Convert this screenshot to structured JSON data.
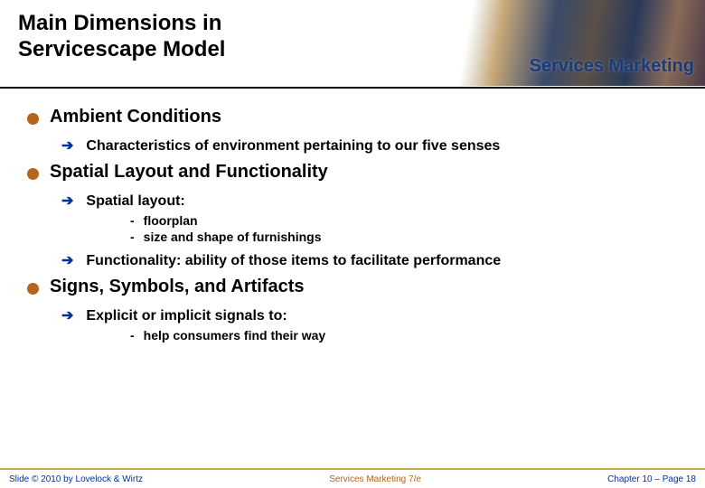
{
  "title_line1": "Main Dimensions in",
  "title_line2": "Servicescape Model",
  "header_brand": "Services Marketing",
  "colors": {
    "bullet_disc": "#b5651d",
    "arrow": "#003399",
    "footer_rule": "#c9a94a",
    "footer_left": "#003399",
    "footer_center": "#b5651d",
    "footer_right": "#003399"
  },
  "sections": [
    {
      "heading": "Ambient Conditions",
      "subs": [
        {
          "text": "Characteristics of environment pertaining to our five senses",
          "items": []
        }
      ]
    },
    {
      "heading": "Spatial Layout and Functionality",
      "subs": [
        {
          "text": "Spatial layout:",
          "items": [
            "floorplan",
            "size and shape of furnishings"
          ]
        },
        {
          "text": "Functionality: ability of those items to facilitate performance",
          "items": []
        }
      ]
    },
    {
      "heading": "Signs, Symbols, and Artifacts",
      "subs": [
        {
          "text": "Explicit or implicit signals to:",
          "items": [
            "help consumers find their way"
          ]
        }
      ]
    }
  ],
  "footer": {
    "left": "Slide © 2010 by Lovelock & Wirtz",
    "center": "Services Marketing 7/e",
    "right": "Chapter 10 – Page 18"
  }
}
